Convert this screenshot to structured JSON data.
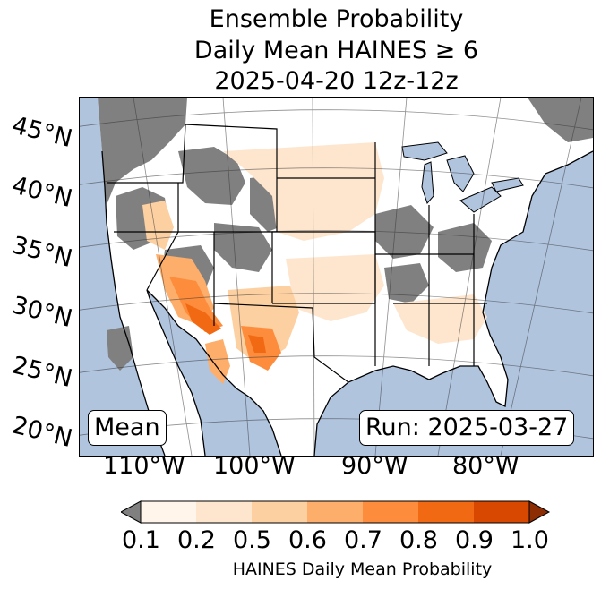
{
  "title": {
    "line1": "Ensemble Probability",
    "line2": "Daily Mean HAINES ≥ 6",
    "line3": "2025-04-20 12z-12z"
  },
  "map": {
    "lat_labels": [
      "45°N",
      "40°N",
      "35°N",
      "30°N",
      "25°N",
      "20°N"
    ],
    "lon_labels": [
      "110°W",
      "100°W",
      "90°W",
      "80°W"
    ],
    "mean_label": "Mean",
    "run_label": "Run: 2025-03-27",
    "colors": {
      "ocean": "#b0c4de",
      "land": "#ffffff",
      "no_data": "#808080"
    }
  },
  "colorbar": {
    "ticks": [
      "0.1",
      "0.2",
      "0.5",
      "0.6",
      "0.7",
      "0.8",
      "0.9",
      "1.0"
    ],
    "colors": [
      "#fff5eb",
      "#fee6ce",
      "#fdd0a2",
      "#fdae6b",
      "#fd8d3c",
      "#f16913",
      "#d94801"
    ],
    "under_color": "#808080",
    "over_color": "#8c2d04",
    "label": "HAINES Daily Mean Probability"
  }
}
